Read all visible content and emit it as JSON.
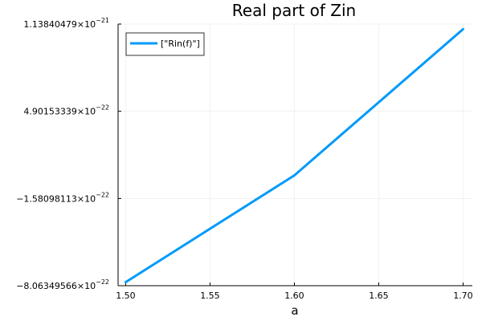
{
  "chart_data": {
    "type": "line",
    "title": "Real part of Zin",
    "xlabel": "a",
    "ylabel": "",
    "xlim": [
      1.4955,
      1.7055
    ],
    "ylim": [
      -8.06349566e-22,
      1.13840479e-21
    ],
    "x_ticks": [
      {
        "value": 1.5,
        "label": "1.50"
      },
      {
        "value": 1.55,
        "label": "1.55"
      },
      {
        "value": 1.6,
        "label": "1.60"
      },
      {
        "value": 1.65,
        "label": "1.65"
      },
      {
        "value": 1.7,
        "label": "1.70"
      }
    ],
    "y_ticks": [
      {
        "value": -8.06349566e-22,
        "mantissa": "−8.06349566×10",
        "exponent": "−22"
      },
      {
        "value": -1.58098113e-22,
        "mantissa": "−1.58098113×10",
        "exponent": "−22"
      },
      {
        "value": 4.90153339e-22,
        "mantissa": "4.90153339×10",
        "exponent": "−22"
      },
      {
        "value": 1.13840479e-21,
        "mantissa": "1.13840479×10",
        "exponent": "−21"
      }
    ],
    "grid": true,
    "legend_position": "top-left",
    "series": [
      {
        "name": "[\"Rin(f)\"]",
        "color": "#009AFA",
        "x": [
          1.5,
          1.6,
          1.7
        ],
        "y": [
          -7.8e-22,
          1.4e-23,
          1.1e-21
        ]
      }
    ]
  }
}
